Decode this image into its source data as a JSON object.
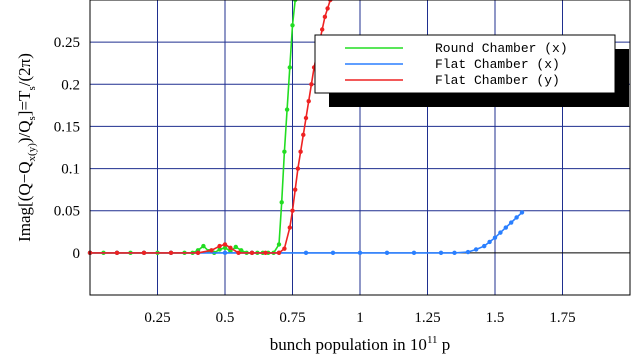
{
  "chart_data": {
    "type": "line",
    "xlim": [
      0,
      2.0
    ],
    "ylim": [
      -0.05,
      0.3
    ],
    "xticks": [
      0.25,
      0.5,
      0.75,
      1,
      1.25,
      1.5,
      1.75
    ],
    "xtick_labels": [
      "0.25",
      "0.5",
      "0.75",
      "1",
      "1.25",
      "1.5",
      "1.75"
    ],
    "yticks": [
      0,
      0.05,
      0.1,
      0.15,
      0.2,
      0.25
    ],
    "ytick_labels": [
      "0",
      "0.05",
      "0.1",
      "0.15",
      "0.2",
      "0.25"
    ],
    "grid": true,
    "legend_placement": "top-right",
    "xlabel": {
      "text": "bunch population in 10",
      "sup": "11",
      "suffix": " p"
    },
    "ylabel": {
      "text": "Imag[(Q−Q",
      "sub1": "x(y)",
      "mid": ")/Q",
      "sub2": "s",
      "end": "]=T",
      "sub3": "s",
      "tail": "/(2π)"
    },
    "series": [
      {
        "name": "Round Chamber (x)",
        "color": "#22dd22",
        "x": [
          0.0,
          0.05,
          0.1,
          0.15,
          0.2,
          0.25,
          0.3,
          0.35,
          0.38,
          0.4,
          0.42,
          0.44,
          0.46,
          0.48,
          0.5,
          0.52,
          0.54,
          0.56,
          0.58,
          0.6,
          0.62,
          0.64,
          0.66,
          0.68,
          0.7,
          0.71,
          0.72,
          0.73,
          0.74,
          0.75,
          0.76
        ],
        "y": [
          0,
          0,
          0,
          0,
          0,
          0,
          0,
          0,
          0,
          0.003,
          0.008,
          0.002,
          0.0,
          0.004,
          0.006,
          0.002,
          0.007,
          0.003,
          0.0,
          0.0,
          0.0,
          0.0,
          0.0,
          0.0,
          0.01,
          0.06,
          0.12,
          0.17,
          0.22,
          0.27,
          0.3
        ]
      },
      {
        "name": "Flat Chamber (x)",
        "color": "#2a7fff",
        "x": [
          0.0,
          0.1,
          0.2,
          0.3,
          0.4,
          0.5,
          0.6,
          0.7,
          0.8,
          0.9,
          1.0,
          1.1,
          1.2,
          1.3,
          1.35,
          1.4,
          1.43,
          1.46,
          1.48,
          1.5,
          1.52,
          1.54,
          1.56,
          1.58,
          1.6
        ],
        "y": [
          0,
          0,
          0,
          0,
          0,
          0,
          0,
          0,
          0,
          0,
          0,
          0,
          0,
          0,
          0,
          0.001,
          0.004,
          0.008,
          0.013,
          0.018,
          0.024,
          0.03,
          0.036,
          0.042,
          0.048
        ]
      },
      {
        "name": "Flat Chamber (y)",
        "color": "#ee2222",
        "x": [
          0.0,
          0.1,
          0.2,
          0.3,
          0.4,
          0.45,
          0.48,
          0.5,
          0.52,
          0.55,
          0.6,
          0.65,
          0.7,
          0.72,
          0.74,
          0.75,
          0.76,
          0.77,
          0.78,
          0.79,
          0.8,
          0.81,
          0.82,
          0.83,
          0.84,
          0.85,
          0.86,
          0.87,
          0.88,
          0.89
        ],
        "y": [
          0,
          0,
          0,
          0,
          0,
          0.003,
          0.008,
          0.01,
          0.006,
          0.0,
          0.0,
          0.0,
          0.0,
          0.005,
          0.03,
          0.05,
          0.075,
          0.1,
          0.12,
          0.14,
          0.16,
          0.18,
          0.2,
          0.22,
          0.235,
          0.25,
          0.265,
          0.28,
          0.29,
          0.3
        ]
      }
    ]
  }
}
